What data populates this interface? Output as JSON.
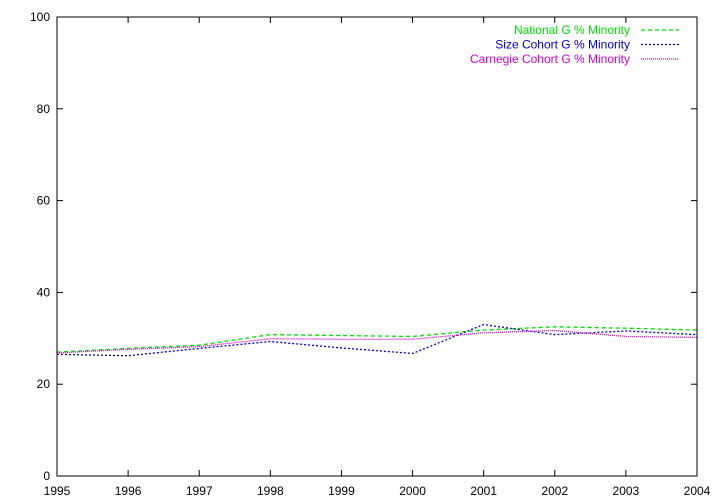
{
  "chart_data": {
    "type": "line",
    "title": "",
    "xlabel": "",
    "ylabel": "",
    "x": [
      1995,
      1996,
      1997,
      1998,
      1999,
      2000,
      2001,
      2002,
      2003,
      2004
    ],
    "xlim": [
      1995,
      2004
    ],
    "ylim": [
      0,
      100
    ],
    "x_ticks": [
      1995,
      1996,
      1997,
      1998,
      1999,
      2000,
      2001,
      2002,
      2003,
      2004
    ],
    "y_ticks": [
      0,
      20,
      40,
      60,
      80,
      100
    ],
    "grid": false,
    "legend_position": "top-right",
    "series": [
      {
        "name": "National G % Minority",
        "color": "#00dd00",
        "dash": "dashed",
        "values": [
          27.0,
          27.8,
          28.5,
          30.8,
          30.6,
          30.4,
          31.8,
          32.5,
          32.2,
          31.8
        ]
      },
      {
        "name": "Size Cohort G % Minority",
        "color": "#0000cc",
        "dash": "dotted",
        "values": [
          26.5,
          26.2,
          27.8,
          29.3,
          27.9,
          26.7,
          33.0,
          30.8,
          31.6,
          30.8
        ]
      },
      {
        "name": "Carnegie Cohort G % Minority",
        "color": "#cc00cc",
        "dash": "fine-dotted",
        "values": [
          26.8,
          27.6,
          28.2,
          29.9,
          29.8,
          29.8,
          31.2,
          31.7,
          30.4,
          30.2
        ]
      }
    ]
  }
}
